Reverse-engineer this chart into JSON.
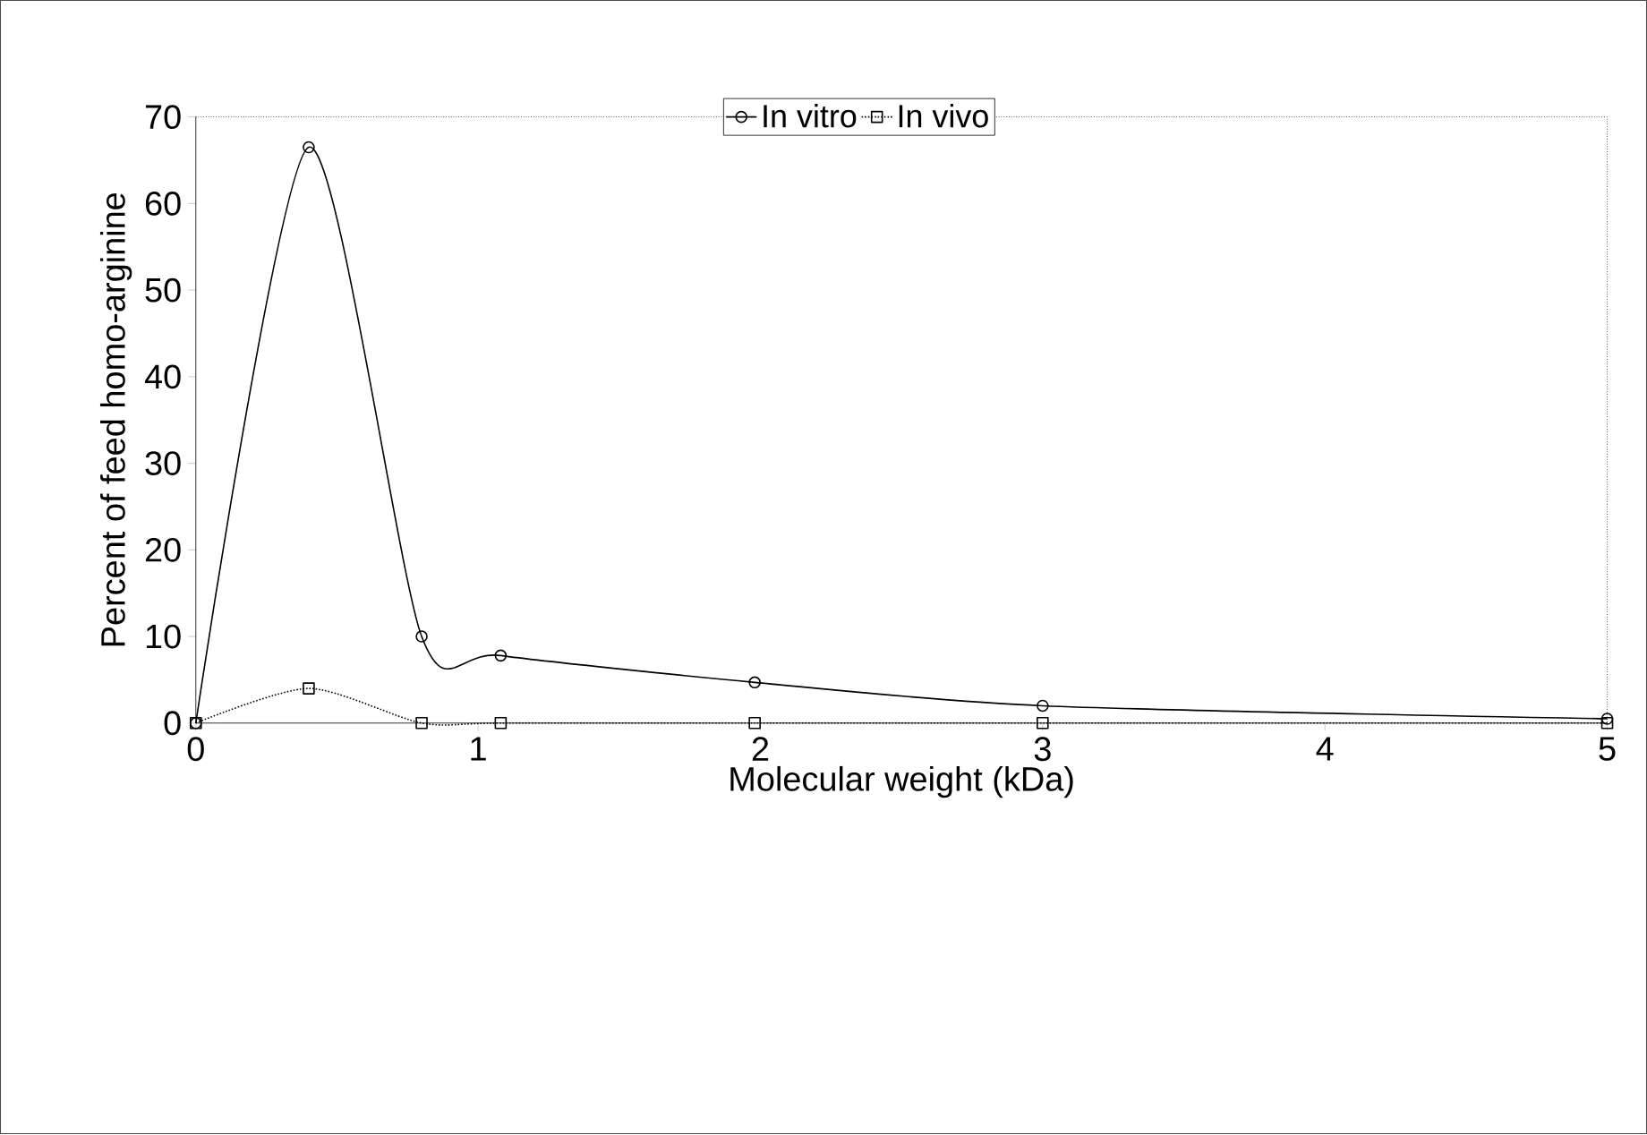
{
  "chart_data": {
    "type": "line",
    "xlabel": "Molecular weight (kDa)",
    "ylabel": "Percent of feed homo-arginine",
    "x": [
      0,
      0.4,
      0.8,
      1.08,
      1.98,
      3.0,
      5.0
    ],
    "series": [
      {
        "name": "In vitro",
        "color": "#000000",
        "marker": "circle",
        "line_style": "solid",
        "values": [
          0,
          66.5,
          10,
          7.8,
          4.7,
          2,
          0.5
        ]
      },
      {
        "name": "In vivo",
        "color": "#000000",
        "marker": "square",
        "line_style": "dotted",
        "values": [
          0,
          4,
          0,
          0,
          0,
          0,
          0
        ]
      }
    ],
    "xlim": [
      0,
      5
    ],
    "xticks": [
      0,
      1,
      2,
      3,
      4,
      5
    ],
    "ylim": [
      0,
      70
    ],
    "yticks": [
      0,
      10,
      20,
      30,
      40,
      50,
      60,
      70
    ],
    "grid": false,
    "legend": "top"
  }
}
